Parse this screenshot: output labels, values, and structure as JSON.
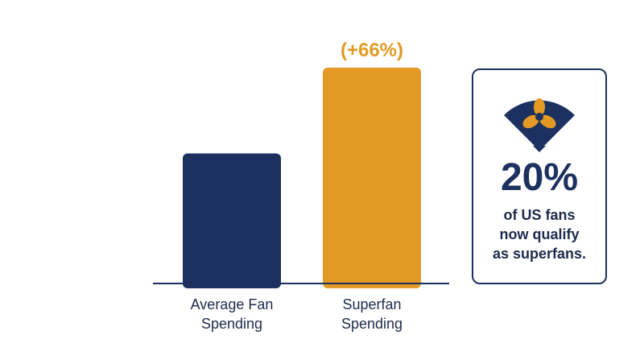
{
  "chart_data": {
    "type": "bar",
    "categories": [
      "Average Fan Spending",
      "Superfan Spending"
    ],
    "category_lines": [
      [
        "Average Fan",
        "Spending"
      ],
      [
        "Superfan",
        "Spending"
      ]
    ],
    "values": [
      100,
      166
    ],
    "data_labels": [
      "",
      "(+66%)"
    ],
    "bar_colors": [
      "#1c3160",
      "#e39a24"
    ],
    "title": "",
    "xlabel": "",
    "ylabel": "",
    "ylim": [
      0,
      166
    ],
    "grid": false,
    "legend": "none"
  },
  "stat_card": {
    "icon": "hand-fan-icon",
    "value": "20%",
    "text": "of US fans\nnow qualify\nas superfans."
  },
  "colors": {
    "navy": "#1c3160",
    "gold": "#e39a24",
    "text": "#1c2b4a"
  }
}
